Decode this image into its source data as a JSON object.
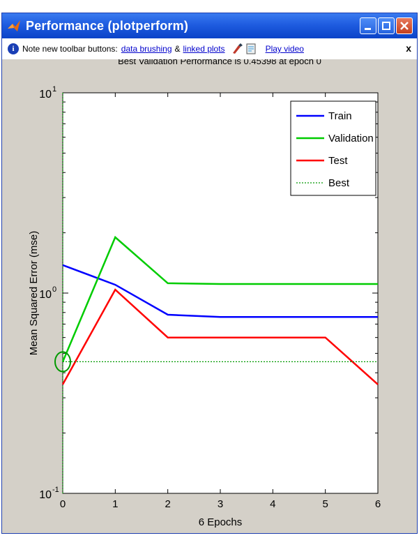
{
  "window": {
    "title": "Performance (plotperform)",
    "minimize_label": "minimize",
    "restore_label": "restore",
    "close_label": "close"
  },
  "infobar": {
    "note": "Note new toolbar buttons:",
    "link_brushing": "data brushing",
    "amp": "&",
    "link_plots": "linked plots",
    "play_video": "Play video",
    "dismiss": "x"
  },
  "chart_data": {
    "type": "line",
    "title": "Best Validation Performance is 0.45398 at epoch 0",
    "xlabel": "6 Epochs",
    "ylabel": "Mean Squared Error  (mse)",
    "xlim": [
      0,
      6
    ],
    "ylim": [
      0.1,
      10
    ],
    "yscale": "log",
    "xticks": [
      "0",
      "1",
      "2",
      "3",
      "4",
      "5",
      "6"
    ],
    "yticks": [
      {
        "value": 0.1,
        "base": "10",
        "exp": "-1"
      },
      {
        "value": 1,
        "base": "10",
        "exp": "0"
      },
      {
        "value": 10,
        "base": "10",
        "exp": "1"
      }
    ],
    "legend_position": "top-right",
    "series": [
      {
        "name": "Train",
        "color": "#0000ff",
        "style": "solid",
        "x": [
          0,
          1,
          2,
          3,
          4,
          5,
          6
        ],
        "y": [
          1.38,
          1.1,
          0.78,
          0.76,
          0.76,
          0.76,
          0.76
        ]
      },
      {
        "name": "Validation",
        "color": "#00cc00",
        "style": "solid",
        "x": [
          0,
          1,
          2,
          3,
          4,
          5,
          6
        ],
        "y": [
          0.454,
          1.9,
          1.12,
          1.11,
          1.11,
          1.11,
          1.11
        ]
      },
      {
        "name": "Test",
        "color": "#ff0000",
        "style": "solid",
        "x": [
          0,
          1,
          2,
          3,
          4,
          5,
          6
        ],
        "y": [
          0.35,
          1.04,
          0.6,
          0.6,
          0.6,
          0.6,
          0.35
        ]
      },
      {
        "name": "Best",
        "color": "#009900",
        "style": "dotted",
        "x": [
          0,
          6
        ],
        "y": [
          0.454,
          0.454
        ]
      }
    ],
    "best_point": {
      "x": 0,
      "y": 0.454
    },
    "best_vertical_at_x": 0
  }
}
